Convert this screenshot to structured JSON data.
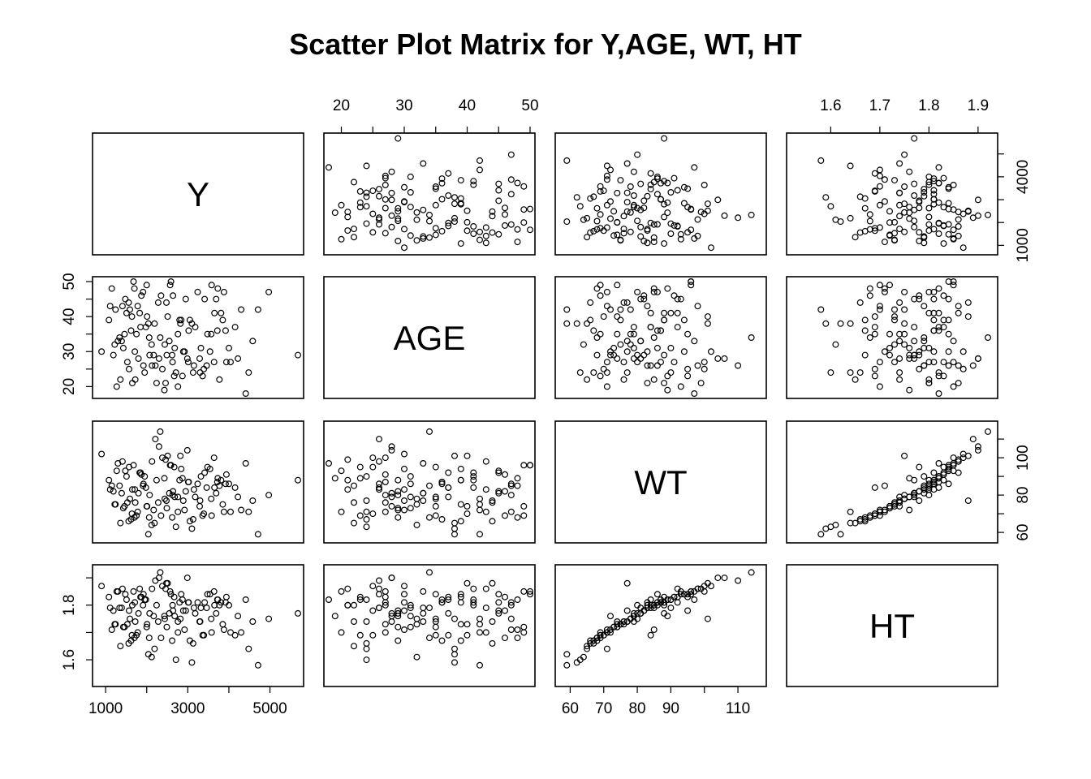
{
  "title": "Scatter Plot Matrix for Y,AGE, WT, HT",
  "chart_data": {
    "type": "scatter",
    "title": "Scatter Plot Matrix for Y,AGE, WT, HT",
    "variables": [
      {
        "name": "Y",
        "range": [
          800,
          5700
        ],
        "ticks": [
          1000,
          3000,
          5000
        ],
        "ticks_alt": [
          1000,
          4000
        ],
        "minor_ticks": [
          1000,
          2000,
          3000,
          4000,
          5000
        ]
      },
      {
        "name": "AGE",
        "range": [
          18,
          50
        ],
        "ticks": [
          20,
          30,
          40,
          50
        ],
        "minor_ticks": [
          20,
          25,
          30,
          35,
          40,
          45,
          50
        ]
      },
      {
        "name": "WT",
        "range": [
          57,
          117
        ],
        "ticks": [
          60,
          70,
          80,
          90,
          110
        ],
        "ticks_alt": [
          60,
          80,
          100
        ],
        "minor_ticks": [
          60,
          70,
          80,
          90,
          100,
          110
        ]
      },
      {
        "name": "HT",
        "range": [
          1.52,
          1.93
        ],
        "ticks": [
          1.6,
          1.7,
          1.8,
          1.9
        ],
        "ticks_alt": [
          1.6,
          1.8
        ],
        "minor_ticks": [
          1.6,
          1.7,
          1.8,
          1.9
        ]
      }
    ],
    "observations": [
      {
        "Y": 1080,
        "AGE": 39,
        "WT": 88,
        "HT": 1.83
      },
      {
        "Y": 2820,
        "AGE": 38,
        "WT": 101,
        "HT": 1.75
      },
      {
        "Y": 2630,
        "AGE": 27,
        "WT": 80,
        "HT": 1.8
      },
      {
        "Y": 3880,
        "AGE": 47,
        "WT": 71,
        "HT": 1.71
      },
      {
        "Y": 1710,
        "AGE": 30,
        "WT": 83,
        "HT": 1.81
      },
      {
        "Y": 1570,
        "AGE": 25,
        "WT": 95,
        "HT": 1.78
      },
      {
        "Y": 4150,
        "AGE": 37,
        "WT": 84,
        "HT": 1.69
      },
      {
        "Y": 2480,
        "AGE": 44,
        "WT": 77,
        "HT": 1.88
      },
      {
        "Y": 1360,
        "AGE": 22,
        "WT": 65,
        "HT": 1.65
      },
      {
        "Y": 3320,
        "AGE": 31,
        "WT": 90,
        "HT": 1.79
      },
      {
        "Y": 2170,
        "AGE": 29,
        "WT": 72,
        "HT": 1.76
      },
      {
        "Y": 3580,
        "AGE": 49,
        "WT": 69,
        "HT": 1.7
      },
      {
        "Y": 1920,
        "AGE": 26,
        "WT": 86,
        "HT": 1.84
      },
      {
        "Y": 2760,
        "AGE": 35,
        "WT": 79,
        "HT": 1.74
      },
      {
        "Y": 4410,
        "AGE": 18,
        "WT": 97,
        "HT": 1.82
      },
      {
        "Y": 1240,
        "AGE": 42,
        "WT": 75,
        "HT": 1.73
      },
      {
        "Y": 2990,
        "AGE": 28,
        "WT": 104,
        "HT": 1.9
      },
      {
        "Y": 3130,
        "AGE": 24,
        "WT": 67,
        "HT": 1.66
      },
      {
        "Y": 1830,
        "AGE": 41,
        "WT": 92,
        "HT": 1.86
      },
      {
        "Y": 2550,
        "AGE": 33,
        "WT": 81,
        "HT": 1.77
      },
      {
        "Y": 5680,
        "AGE": 29,
        "WT": 88,
        "HT": 1.77
      },
      {
        "Y": 1460,
        "AGE": 35,
        "WT": 74,
        "HT": 1.72
      },
      {
        "Y": 3640,
        "AGE": 27,
        "WT": 100,
        "HT": 1.85
      },
      {
        "Y": 2350,
        "AGE": 46,
        "WT": 69,
        "HT": 1.68
      },
      {
        "Y": 4970,
        "AGE": 47,
        "WT": 80,
        "HT": 1.75
      },
      {
        "Y": 1650,
        "AGE": 21,
        "WT": 83,
        "HT": 1.8
      },
      {
        "Y": 2040,
        "AGE": 38,
        "WT": 59,
        "HT": 1.62
      },
      {
        "Y": 3410,
        "AGE": 45,
        "WT": 92,
        "HT": 1.81
      },
      {
        "Y": 2890,
        "AGE": 30,
        "WT": 77,
        "HT": 1.78
      },
      {
        "Y": 1150,
        "AGE": 48,
        "WT": 85,
        "HT": 1.71
      },
      {
        "Y": 4710,
        "AGE": 42,
        "WT": 59,
        "HT": 1.58
      },
      {
        "Y": 2210,
        "AGE": 26,
        "WT": 110,
        "HT": 1.89
      },
      {
        "Y": 3720,
        "AGE": 36,
        "WT": 87,
        "HT": 1.82
      },
      {
        "Y": 1780,
        "AGE": 43,
        "WT": 71,
        "HT": 1.7
      },
      {
        "Y": 2670,
        "AGE": 23,
        "WT": 95,
        "HT": 1.83
      },
      {
        "Y": 1390,
        "AGE": 33,
        "WT": 81,
        "HT": 1.79
      },
      {
        "Y": 3050,
        "AGE": 39,
        "WT": 66,
        "HT": 1.67
      },
      {
        "Y": 2430,
        "AGE": 19,
        "WT": 89,
        "HT": 1.76
      },
      {
        "Y": 900,
        "AGE": 30,
        "WT": 102,
        "HT": 1.87
      },
      {
        "Y": 3290,
        "AGE": 28,
        "WT": 74,
        "HT": 1.74
      },
      {
        "Y": 1980,
        "AGE": 37,
        "WT": 84,
        "HT": 1.82
      },
      {
        "Y": 4480,
        "AGE": 24,
        "WT": 71,
        "HT": 1.64
      },
      {
        "Y": 2590,
        "AGE": 50,
        "WT": 96,
        "HT": 1.84
      },
      {
        "Y": 1530,
        "AGE": 27,
        "WT": 76,
        "HT": 1.73
      },
      {
        "Y": 3810,
        "AGE": 41,
        "WT": 88,
        "HT": 1.81
      },
      {
        "Y": 2120,
        "AGE": 32,
        "WT": 64,
        "HT": 1.61
      },
      {
        "Y": 2950,
        "AGE": 45,
        "WT": 82,
        "HT": 1.78
      },
      {
        "Y": 1270,
        "AGE": 20,
        "WT": 93,
        "HT": 1.85
      },
      {
        "Y": 3570,
        "AGE": 35,
        "WT": 78,
        "HT": 1.75
      },
      {
        "Y": 2300,
        "AGE": 28,
        "WT": 106,
        "HT": 1.9
      },
      {
        "Y": 1640,
        "AGE": 40,
        "WT": 70,
        "HT": 1.69
      },
      {
        "Y": 4000,
        "AGE": 31,
        "WT": 86,
        "HT": 1.8
      },
      {
        "Y": 2710,
        "AGE": 24,
        "WT": 63,
        "HT": 1.6
      },
      {
        "Y": 1870,
        "AGE": 46,
        "WT": 91,
        "HT": 1.83
      },
      {
        "Y": 3180,
        "AGE": 37,
        "WT": 79,
        "HT": 1.77
      },
      {
        "Y": 2490,
        "AGE": 29,
        "WT": 73,
        "HT": 1.72
      },
      {
        "Y": 1410,
        "AGE": 43,
        "WT": 98,
        "HT": 1.86
      },
      {
        "Y": 3460,
        "AGE": 26,
        "WT": 84,
        "HT": 1.79
      },
      {
        "Y": 2060,
        "AGE": 34,
        "WT": 68,
        "HT": 1.68
      },
      {
        "Y": 3730,
        "AGE": 48,
        "WT": 89,
        "HT": 1.82
      },
      {
        "Y": 1720,
        "AGE": 22,
        "WT": 76,
        "HT": 1.74
      },
      {
        "Y": 2840,
        "AGE": 39,
        "WT": 94,
        "HT": 1.84
      },
      {
        "Y": 1190,
        "AGE": 29,
        "WT": 82,
        "HT": 1.78
      },
      {
        "Y": 4300,
        "AGE": 42,
        "WT": 72,
        "HT": 1.7
      },
      {
        "Y": 2380,
        "AGE": 25,
        "WT": 100,
        "HT": 1.87
      },
      {
        "Y": 3020,
        "AGE": 36,
        "WT": 87,
        "HT": 1.81
      },
      {
        "Y": 1560,
        "AGE": 44,
        "WT": 66,
        "HT": 1.66
      },
      {
        "Y": 2680,
        "AGE": 31,
        "WT": 79,
        "HT": 1.76
      },
      {
        "Y": 3940,
        "AGE": 27,
        "WT": 91,
        "HT": 1.83
      },
      {
        "Y": 2010,
        "AGE": 40,
        "WT": 74,
        "HT": 1.73
      },
      {
        "Y": 1340,
        "AGE": 34,
        "WT": 85,
        "HT": 1.79
      },
      {
        "Y": 3360,
        "AGE": 23,
        "WT": 69,
        "HT": 1.69
      },
      {
        "Y": 2570,
        "AGE": 49,
        "WT": 96,
        "HT": 1.85
      },
      {
        "Y": 1800,
        "AGE": 28,
        "WT": 81,
        "HT": 1.77
      },
      {
        "Y": 3100,
        "AGE": 38,
        "WT": 62,
        "HT": 1.59
      },
      {
        "Y": 2240,
        "AGE": 21,
        "WT": 88,
        "HT": 1.8
      },
      {
        "Y": 4580,
        "AGE": 33,
        "WT": 77,
        "HT": 1.74
      },
      {
        "Y": 1480,
        "AGE": 45,
        "WT": 93,
        "HT": 1.84
      },
      {
        "Y": 2920,
        "AGE": 30,
        "WT": 72,
        "HT": 1.71
      },
      {
        "Y": 3650,
        "AGE": 41,
        "WT": 84,
        "HT": 1.8
      },
      {
        "Y": 2130,
        "AGE": 26,
        "WT": 98,
        "HT": 1.86
      },
      {
        "Y": 1620,
        "AGE": 36,
        "WT": 67,
        "HT": 1.67
      },
      {
        "Y": 3240,
        "AGE": 47,
        "WT": 86,
        "HT": 1.81
      },
      {
        "Y": 2440,
        "AGE": 32,
        "WT": 78,
        "HT": 1.75
      },
      {
        "Y": 1950,
        "AGE": 24,
        "WT": 90,
        "HT": 1.82
      },
      {
        "Y": 3850,
        "AGE": 39,
        "WT": 75,
        "HT": 1.73
      },
      {
        "Y": 1110,
        "AGE": 43,
        "WT": 83,
        "HT": 1.79
      },
      {
        "Y": 2760,
        "AGE": 20,
        "WT": 71,
        "HT": 1.7
      },
      {
        "Y": 3480,
        "AGE": 35,
        "WT": 95,
        "HT": 1.84
      },
      {
        "Y": 2070,
        "AGE": 29,
        "WT": 80,
        "HT": 1.77
      },
      {
        "Y": 1700,
        "AGE": 48,
        "WT": 68,
        "HT": 1.68
      },
      {
        "Y": 3010,
        "AGE": 27,
        "WT": 87,
        "HT": 1.81
      },
      {
        "Y": 2510,
        "AGE": 40,
        "WT": 101,
        "HT": 1.88
      },
      {
        "Y": 1430,
        "AGE": 31,
        "WT": 73,
        "HT": 1.72
      },
      {
        "Y": 3770,
        "AGE": 22,
        "WT": 85,
        "HT": 1.8
      },
      {
        "Y": 2280,
        "AGE": 44,
        "WT": 76,
        "HT": 1.74
      },
      {
        "Y": 1850,
        "AGE": 37,
        "WT": 92,
        "HT": 1.83
      },
      {
        "Y": 3390,
        "AGE": 25,
        "WT": 70,
        "HT": 1.69
      },
      {
        "Y": 2640,
        "AGE": 46,
        "WT": 82,
        "HT": 1.78
      },
      {
        "Y": 1300,
        "AGE": 33,
        "WT": 97,
        "HT": 1.85
      },
      {
        "Y": 4220,
        "AGE": 28,
        "WT": 79,
        "HT": 1.76
      },
      {
        "Y": 2190,
        "AGE": 38,
        "WT": 65,
        "HT": 1.64
      },
      {
        "Y": 2870,
        "AGE": 23,
        "WT": 89,
        "HT": 1.82
      },
      {
        "Y": 1590,
        "AGE": 42,
        "WT": 78,
        "HT": 1.75
      },
      {
        "Y": 3540,
        "AGE": 30,
        "WT": 94,
        "HT": 1.84
      },
      {
        "Y": 2000,
        "AGE": 49,
        "WT": 74,
        "HT": 1.72
      },
      {
        "Y": 3150,
        "AGE": 26,
        "WT": 83,
        "HT": 1.79
      },
      {
        "Y": 1750,
        "AGE": 35,
        "WT": 69,
        "HT": 1.69
      },
      {
        "Y": 2460,
        "AGE": 21,
        "WT": 99,
        "HT": 1.86
      },
      {
        "Y": 3690,
        "AGE": 45,
        "WT": 81,
        "HT": 1.77
      },
      {
        "Y": 1220,
        "AGE": 32,
        "WT": 75,
        "HT": 1.73
      },
      {
        "Y": 2800,
        "AGE": 39,
        "WT": 88,
        "HT": 1.81
      },
      {
        "Y": 4040,
        "AGE": 27,
        "WT": 71,
        "HT": 1.7
      },
      {
        "Y": 1910,
        "AGE": 47,
        "WT": 85,
        "HT": 1.8
      },
      {
        "Y": 2330,
        "AGE": 34,
        "WT": 114,
        "HT": 1.92
      },
      {
        "Y": 3300,
        "AGE": 24,
        "WT": 77,
        "HT": 1.74
      },
      {
        "Y": 1510,
        "AGE": 41,
        "WT": 90,
        "HT": 1.82
      },
      {
        "Y": 2620,
        "AGE": 29,
        "WT": 68,
        "HT": 1.67
      },
      {
        "Y": 3920,
        "AGE": 36,
        "WT": 86,
        "HT": 1.81
      },
      {
        "Y": 1680,
        "AGE": 50,
        "WT": 96,
        "HT": 1.85
      }
    ]
  }
}
